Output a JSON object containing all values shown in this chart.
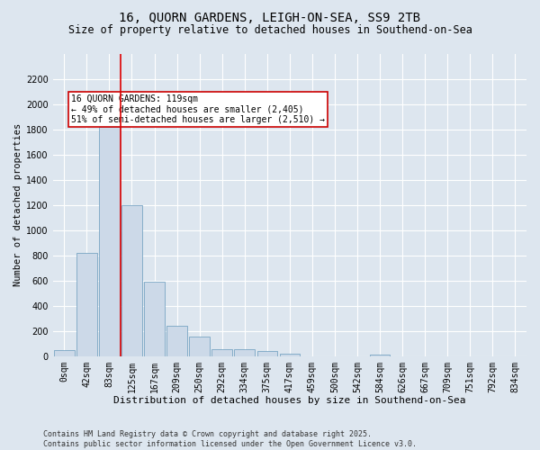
{
  "title1": "16, QUORN GARDENS, LEIGH-ON-SEA, SS9 2TB",
  "title2": "Size of property relative to detached houses in Southend-on-Sea",
  "xlabel": "Distribution of detached houses by size in Southend-on-Sea",
  "ylabel": "Number of detached properties",
  "bin_labels": [
    "0sqm",
    "42sqm",
    "83sqm",
    "125sqm",
    "167sqm",
    "209sqm",
    "250sqm",
    "292sqm",
    "334sqm",
    "375sqm",
    "417sqm",
    "459sqm",
    "500sqm",
    "542sqm",
    "584sqm",
    "626sqm",
    "667sqm",
    "709sqm",
    "751sqm",
    "792sqm",
    "834sqm"
  ],
  "bar_heights": [
    50,
    820,
    1820,
    1200,
    590,
    240,
    155,
    55,
    55,
    40,
    20,
    0,
    0,
    0,
    15,
    0,
    0,
    0,
    0,
    0,
    0
  ],
  "bar_color": "#ccd9e8",
  "bar_edge_color": "#6699bb",
  "vline_x": 3.0,
  "vline_color": "#dd0000",
  "annotation_text": "16 QUORN GARDENS: 119sqm\n← 49% of detached houses are smaller (2,405)\n51% of semi-detached houses are larger (2,510) →",
  "annotation_box_color": "#ffffff",
  "annotation_box_edge": "#cc0000",
  "ylim": [
    0,
    2400
  ],
  "yticks": [
    0,
    200,
    400,
    600,
    800,
    1000,
    1200,
    1400,
    1600,
    1800,
    2000,
    2200
  ],
  "background_color": "#dde6ef",
  "plot_bg_color": "#dde6ef",
  "footer": "Contains HM Land Registry data © Crown copyright and database right 2025.\nContains public sector information licensed under the Open Government Licence v3.0.",
  "title1_fontsize": 10,
  "title2_fontsize": 8.5,
  "xlabel_fontsize": 8,
  "ylabel_fontsize": 7.5,
  "tick_fontsize": 7,
  "annotation_fontsize": 7,
  "footer_fontsize": 6
}
